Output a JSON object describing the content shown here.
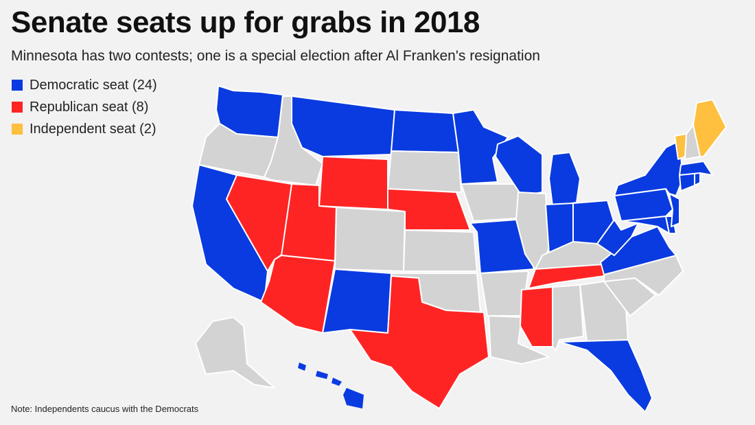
{
  "title": "Senate seats up for grabs in 2018",
  "subtitle": "Minnesota has two contests; one is a special election after Al Franken's resignation",
  "legend": [
    {
      "label": "Democratic seat (24)",
      "color": "#0a3be0"
    },
    {
      "label": "Republican seat (8)",
      "color": "#ff2424"
    },
    {
      "label": "Independent seat (2)",
      "color": "#ffbf3f"
    }
  ],
  "no_race_color": "#d3d3d3",
  "note": "Note: Independents caucus with the Democrats",
  "states": {
    "WA": "dem",
    "OR": "none",
    "CA": "dem",
    "ID": "none",
    "NV": "rep",
    "MT": "dem",
    "WY": "rep",
    "UT": "rep",
    "AZ": "rep",
    "CO": "none",
    "NM": "dem",
    "ND": "dem",
    "SD": "none",
    "NE": "rep",
    "KS": "none",
    "OK": "none",
    "TX": "rep",
    "MN": "dem",
    "IA": "none",
    "MO": "dem",
    "AR": "none",
    "LA": "none",
    "WI": "dem",
    "IL": "none",
    "MI": "dem",
    "IN": "dem",
    "OH": "dem",
    "KY": "none",
    "TN": "rep",
    "MS": "rep",
    "AL": "none",
    "GA": "none",
    "FL": "dem",
    "SC": "none",
    "NC": "none",
    "VA": "dem",
    "WV": "dem",
    "MD": "dem",
    "DE": "dem",
    "PA": "dem",
    "NJ": "dem",
    "NY": "dem",
    "CT": "dem",
    "RI": "dem",
    "MA": "dem",
    "VT": "ind",
    "NH": "none",
    "ME": "ind",
    "AK": "none",
    "HI": "dem"
  }
}
